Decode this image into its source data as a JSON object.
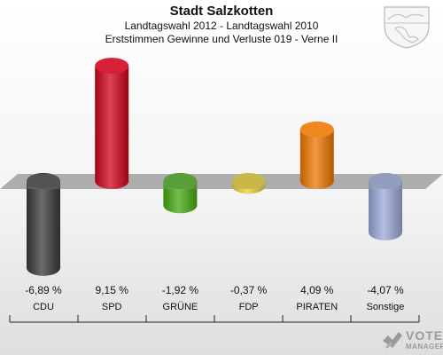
{
  "header": {
    "title": "Stadt Salzkotten",
    "subtitle_line1": "Landtagswahl 2012 - Landtagswahl 2010",
    "subtitle_line2": "Erststimmen Gewinne und Verluste 019 - Verne II"
  },
  "logo": {
    "line1": "VOTE",
    "line2": "MANAGER"
  },
  "chart_data": {
    "type": "bar",
    "categories": [
      "CDU",
      "SPD",
      "GRÜNE",
      "FDP",
      "PIRATEN",
      "Sonstige"
    ],
    "values": [
      -6.89,
      9.15,
      -1.92,
      -0.37,
      4.09,
      -4.07
    ],
    "value_labels": [
      "-6,89 %",
      "9,15 %",
      "-1,92 %",
      "-0,37 %",
      "4,09 %",
      "-4,07 %"
    ],
    "colors": [
      "#3a3a3a",
      "#d0021b",
      "#44aa11",
      "#e8d030",
      "#ee7700",
      "#99a8d8"
    ],
    "title": "Stadt Salzkotten",
    "grid": false,
    "legend": "none"
  }
}
